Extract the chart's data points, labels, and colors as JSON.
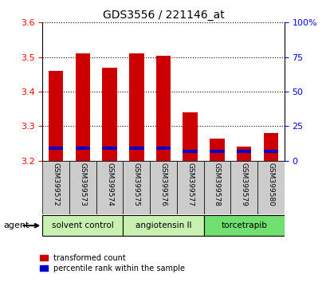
{
  "title": "GDS3556 / 221146_at",
  "samples": [
    "GSM399572",
    "GSM399573",
    "GSM399574",
    "GSM399575",
    "GSM399576",
    "GSM399577",
    "GSM399578",
    "GSM399579",
    "GSM399580"
  ],
  "red_top": [
    3.46,
    3.51,
    3.47,
    3.51,
    3.505,
    3.34,
    3.265,
    3.24,
    3.28
  ],
  "blue_top": [
    3.232,
    3.232,
    3.232,
    3.232,
    3.232,
    3.222,
    3.222,
    3.222,
    3.222
  ],
  "blue_height": [
    0.01,
    0.01,
    0.01,
    0.01,
    0.01,
    0.009,
    0.009,
    0.01,
    0.009
  ],
  "baseline": 3.2,
  "ylim_left": [
    3.2,
    3.6
  ],
  "ylim_right": [
    0,
    100
  ],
  "yticks_left": [
    3.2,
    3.3,
    3.4,
    3.5,
    3.6
  ],
  "yticks_right": [
    0,
    25,
    50,
    75,
    100
  ],
  "ytick_labels_right": [
    "0",
    "25",
    "50",
    "75",
    "100%"
  ],
  "groups": [
    {
      "label": "solvent control",
      "start": 0,
      "end": 3
    },
    {
      "label": "angiotensin II",
      "start": 3,
      "end": 6
    },
    {
      "label": "torcetrapib",
      "start": 6,
      "end": 9
    }
  ],
  "group_colors": [
    "#c8f0b0",
    "#c8f0b0",
    "#70e070"
  ],
  "bar_color_red": "#cc0000",
  "bar_color_blue": "#0000cc",
  "bar_width": 0.55,
  "legend_items": [
    "transformed count",
    "percentile rank within the sample"
  ],
  "bg_color": "#ffffff",
  "xtick_area_color": "#cccccc",
  "agent_color": "#b8f0b8"
}
